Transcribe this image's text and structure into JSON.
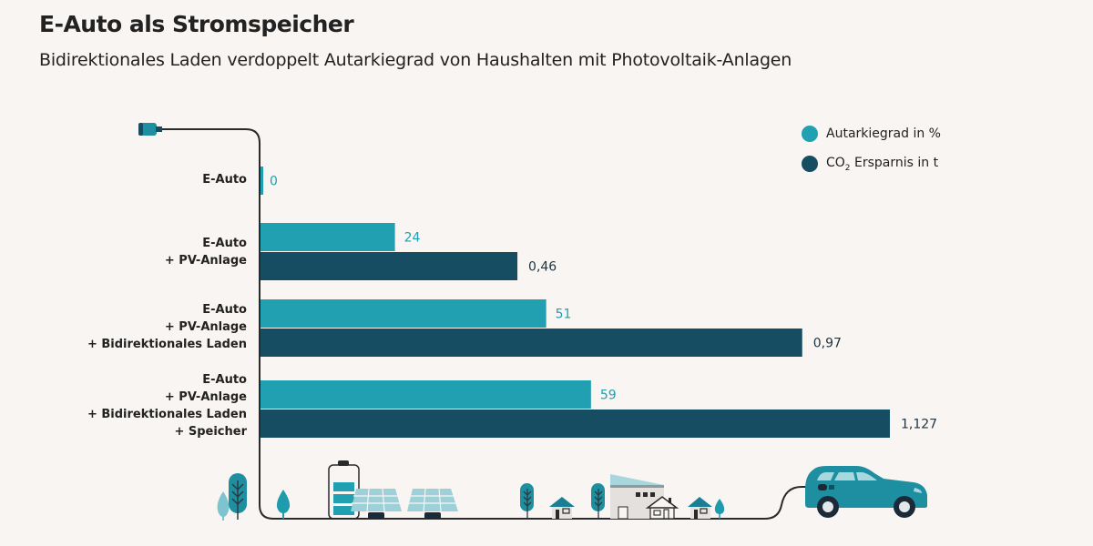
{
  "header": {
    "title": "E-Auto als Stromspeicher",
    "subtitle": "Bidirektionales Laden verdoppelt Autarkiegrad von Haushalten mit Photovoltaik-Anlagen"
  },
  "colors": {
    "background": "#f8f5f2",
    "autarkie": "#20a0b0",
    "co2": "#164d62",
    "axis": "#2a2a2a"
  },
  "legend": [
    {
      "label": "Autarkiegrad in %",
      "color": "#20a0b0"
    },
    {
      "label_prefix": "CO",
      "label_sub": "2",
      "label_suffix": " Ersparnis in t",
      "color": "#164d62"
    }
  ],
  "chart_data": {
    "type": "bar",
    "orientation": "horizontal",
    "title": "E-Auto als Stromspeicher",
    "subtitle": "Bidirektionales Laden verdoppelt Autarkiegrad von Haushalten mit Photovoltaik-Anlagen",
    "categories": [
      [
        "E-Auto"
      ],
      [
        "E-Auto",
        "+ PV-Anlage"
      ],
      [
        "E-Auto",
        "+ PV-Anlage",
        "+ Bidirektionales Laden"
      ],
      [
        "E-Auto",
        "+ PV-Anlage",
        "+ Bidirektionales Laden",
        "+ Speicher"
      ]
    ],
    "series": [
      {
        "name": "Autarkiegrad in %",
        "values": [
          0,
          24,
          51,
          59
        ],
        "labels": [
          "0",
          "24",
          "51",
          "59"
        ],
        "xlim": [
          0,
          100
        ]
      },
      {
        "name": "CO2 Ersparnis in t",
        "values": [
          null,
          0.46,
          0.97,
          1.127
        ],
        "labels": [
          "",
          "0,46",
          "0,97",
          "1,127"
        ],
        "xlim": [
          0,
          1.127
        ]
      }
    ],
    "legend_position": "top-right",
    "grid": false,
    "xlabel": "",
    "ylabel": ""
  },
  "illustration": {
    "elements": [
      "plug",
      "cable",
      "trees",
      "battery",
      "solar-panels",
      "houses",
      "building",
      "electric-car"
    ]
  }
}
